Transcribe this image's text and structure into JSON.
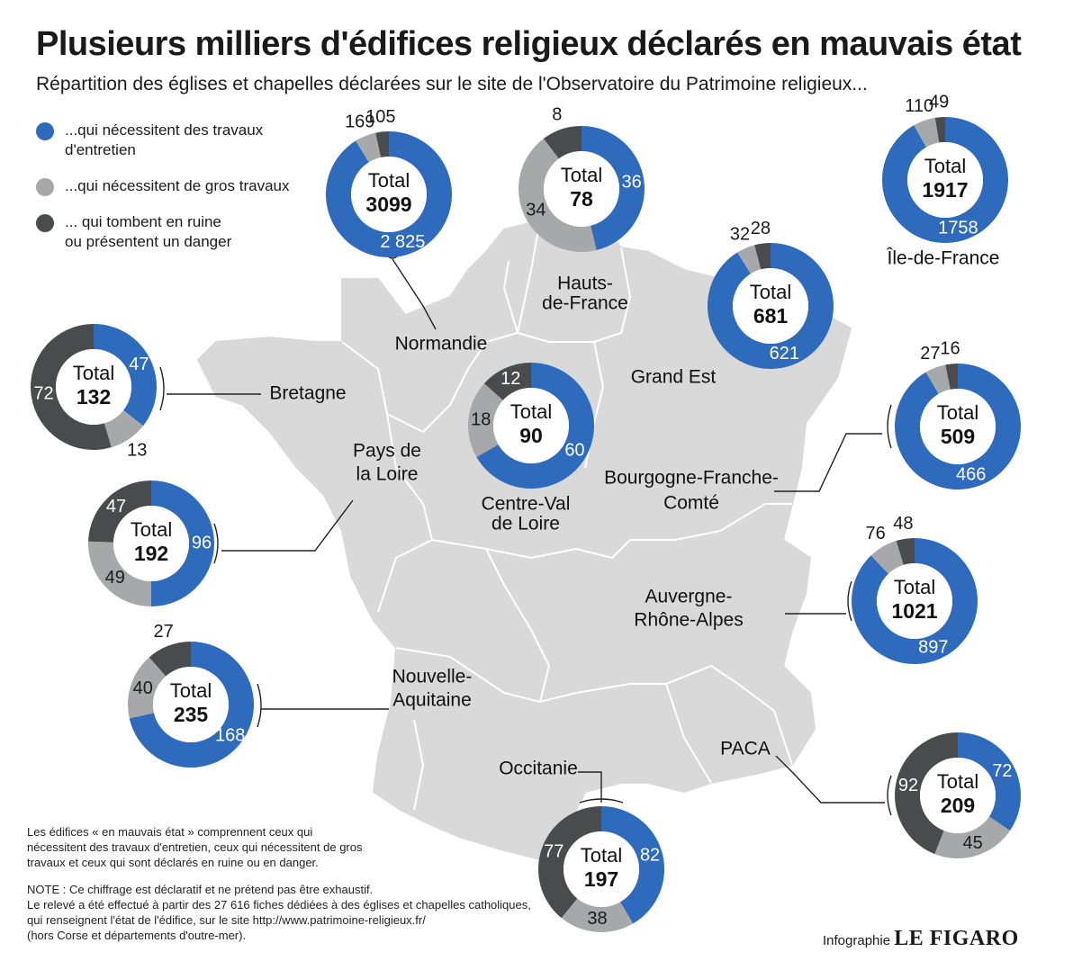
{
  "header": {
    "title": "Plusieurs milliers d'édifices religieux déclarés en mauvais état",
    "subtitle": "Répartition des églises et chapelles déclarées sur le site de l'Observatoire du Patrimoine religieux..."
  },
  "legend": {
    "items": [
      {
        "label_line1": "...qui nécessitent des travaux",
        "label_line2": "d'entretien",
        "color": "#2f6bbd"
      },
      {
        "label_line1": "...qui nécessitent de gros travaux",
        "label_line2": "",
        "color": "#a7a8aa"
      },
      {
        "label_line1": "... qui tombent en ruine",
        "label_line2": "ou présentent un danger",
        "color": "#4a4b4d"
      }
    ]
  },
  "colors": {
    "entretien": "#2f6bbd",
    "gros": "#a7a8aa",
    "ruine": "#4a4b4d",
    "map_fill": "#d9d9da",
    "map_border": "#ffffff"
  },
  "total_label": "Total",
  "chart_data": {
    "type": "pie",
    "title": "Plusieurs milliers d'édifices religieux déclarés en mauvais état",
    "series_names": [
      "...qui nécessitent des travaux d'entretien",
      "...qui nécessitent de gros travaux",
      "... qui tombent en ruine ou présentent un danger"
    ],
    "regions": [
      {
        "name": "Normandie",
        "total": "3099",
        "entretien": 2825,
        "entretien_label": "2 825",
        "gros": 169,
        "ruine": 105
      },
      {
        "name": "Hauts-de-France",
        "total": "78",
        "entretien": 36,
        "entretien_label": "36",
        "gros": 34,
        "ruine": 8
      },
      {
        "name": "Île-de-France",
        "total": "1917",
        "entretien": 1758,
        "entretien_label": "1758",
        "gros": 110,
        "ruine": 49
      },
      {
        "name": "Grand Est",
        "total": "681",
        "entretien": 621,
        "entretien_label": "621",
        "gros": 32,
        "ruine": 28
      },
      {
        "name": "Bretagne",
        "total": "132",
        "entretien": 47,
        "entretien_label": "47",
        "gros": 13,
        "ruine": 72
      },
      {
        "name": "Centre-Val de Loire",
        "total": "90",
        "entretien": 60,
        "entretien_label": "60",
        "gros": 18,
        "ruine": 12
      },
      {
        "name": "Bourgogne-Franche-Comté",
        "total": "509",
        "entretien": 466,
        "entretien_label": "466",
        "gros": 27,
        "ruine": 16
      },
      {
        "name": "Pays de la Loire",
        "total": "192",
        "entretien": 96,
        "entretien_label": "96",
        "gros": 49,
        "ruine": 47
      },
      {
        "name": "Auvergne-Rhône-Alpes",
        "total": "1021",
        "entretien": 897,
        "entretien_label": "897",
        "gros": 76,
        "ruine": 48
      },
      {
        "name": "Nouvelle-Aquitaine",
        "total": "235",
        "entretien": 168,
        "entretien_label": "168",
        "gros": 40,
        "ruine": 27
      },
      {
        "name": "Occitanie",
        "total": "197",
        "entretien": 82,
        "entretien_label": "82",
        "gros": 38,
        "ruine": 77
      },
      {
        "name": "PACA",
        "total": "209",
        "entretien": 72,
        "entretien_label": "72",
        "gros": 45,
        "ruine": 92
      }
    ]
  },
  "map_labels": [
    {
      "text": "Normandie",
      "key": "normandie"
    },
    {
      "text": "Hauts-",
      "key": "hdf1"
    },
    {
      "text": "de-France",
      "key": "hdf2"
    },
    {
      "text": "Île-de-France",
      "key": "idf"
    },
    {
      "text": "Grand Est",
      "key": "ge"
    },
    {
      "text": "Bretagne",
      "key": "bretagne"
    },
    {
      "text": "Pays de",
      "key": "pdl1"
    },
    {
      "text": "la Loire",
      "key": "pdl2"
    },
    {
      "text": "Centre-Val",
      "key": "cvl1"
    },
    {
      "text": "de Loire",
      "key": "cvl2"
    },
    {
      "text": "Bourgogne-Franche-",
      "key": "bfc1"
    },
    {
      "text": "Comté",
      "key": "bfc2"
    },
    {
      "text": "Auvergne-",
      "key": "ara1"
    },
    {
      "text": "Rhône-Alpes",
      "key": "ara2"
    },
    {
      "text": "Nouvelle-",
      "key": "na1"
    },
    {
      "text": "Aquitaine",
      "key": "na2"
    },
    {
      "text": "Occitanie",
      "key": "occ"
    },
    {
      "text": "PACA",
      "key": "paca"
    }
  ],
  "notes": {
    "definition": [
      "Les édifices « en mauvais état » comprennent ceux qui",
      "nécessitent des travaux d'entretien, ceux qui nécessitent de gros",
      "travaux  et ceux qui sont déclarés en ruine ou en danger."
    ],
    "note": [
      "NOTE : Ce chiffrage est déclaratif et ne prétend pas être exhaustif.",
      "Le relevé a été effectué à partir des 27 616 fiches dédiées à des églises et chapelles catholiques,",
      "qui renseignent l'état de l'édifice, sur le site  http://www.patrimoine-religieux.fr/",
      "(hors Corse et départements d'outre-mer)."
    ]
  },
  "credit": {
    "prefix": "Infographie",
    "brand": "LE FIGARO"
  }
}
